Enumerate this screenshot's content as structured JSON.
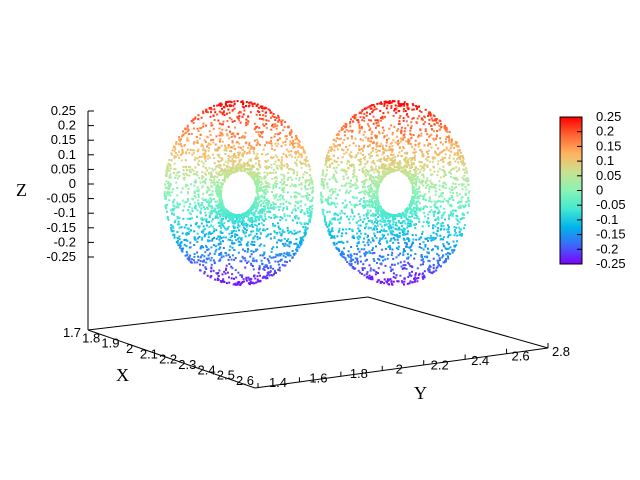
{
  "chart_data": {
    "type": "scatter3d",
    "title": "",
    "xlabel": "X",
    "ylabel": "Y",
    "zlabel": "Z",
    "x_ticks": [
      "1.7",
      "1.8",
      "1.9",
      "2",
      "2.1",
      "2.2",
      "2.3",
      "2.4",
      "2.5",
      "2.6"
    ],
    "y_ticks": [
      "1.4",
      "1.6",
      "1.8",
      "2",
      "2.2",
      "2.4",
      "2.6",
      "2.8"
    ],
    "z_ticks": [
      "0.25",
      "0.2",
      "0.15",
      "0.1",
      "0.05",
      "0",
      "-0.05",
      "-0.1",
      "-0.15",
      "-0.2",
      "-0.25"
    ],
    "colorbar_ticks": [
      "0.25",
      "0.2",
      "0.15",
      "0.1",
      "0.05",
      "0",
      "-0.05",
      "-0.1",
      "-0.15",
      "-0.2",
      "-0.25"
    ],
    "xlim": [
      1.7,
      2.6
    ],
    "ylim": [
      1.4,
      2.8
    ],
    "zlim": [
      -0.25,
      0.25
    ],
    "color_by": "z",
    "colormap": "rainbow",
    "colormap_stops": [
      "#7f00ff",
      "#3d66f9",
      "#00b4eb",
      "#44e8d2",
      "#88f4b4",
      "#c8e291",
      "#ffb360",
      "#ff6633",
      "#ff0000"
    ],
    "shape": "two adjacent tori (dumbbell-like surface)",
    "grid": false,
    "legend": "colorbar-right"
  }
}
